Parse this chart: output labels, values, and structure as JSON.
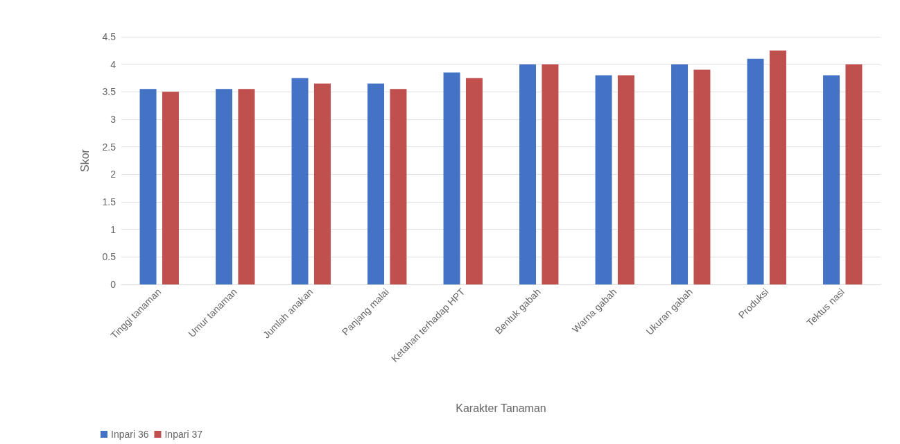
{
  "chart_data": {
    "type": "bar",
    "xlabel": "Karakter Tanaman",
    "ylabel": "Skor",
    "categories": [
      "Tinggi tanaman",
      "Umur tanaman",
      "Jumlah anakan",
      "Panjang malai",
      "Ketahan terhadap HPT",
      "Bentuk gabah",
      "Warna gabah",
      "Ukuran gabah",
      "Produksi",
      "Tektus nasi"
    ],
    "series": [
      {
        "name": "Inpari 36",
        "color": "#4472c4",
        "values": [
          3.55,
          3.55,
          3.75,
          3.65,
          3.85,
          4.0,
          3.8,
          4.0,
          4.1,
          3.8
        ]
      },
      {
        "name": "Inpari 37",
        "color": "#c0504d",
        "values": [
          3.5,
          3.55,
          3.65,
          3.55,
          3.75,
          4.0,
          3.8,
          3.9,
          4.25,
          4.0
        ]
      }
    ],
    "ylim": [
      0,
      4.5
    ],
    "yticks": [
      0,
      0.5,
      1,
      1.5,
      2,
      2.5,
      3,
      3.5,
      4,
      4.5
    ],
    "grid": "y",
    "legend": "bottom left"
  }
}
